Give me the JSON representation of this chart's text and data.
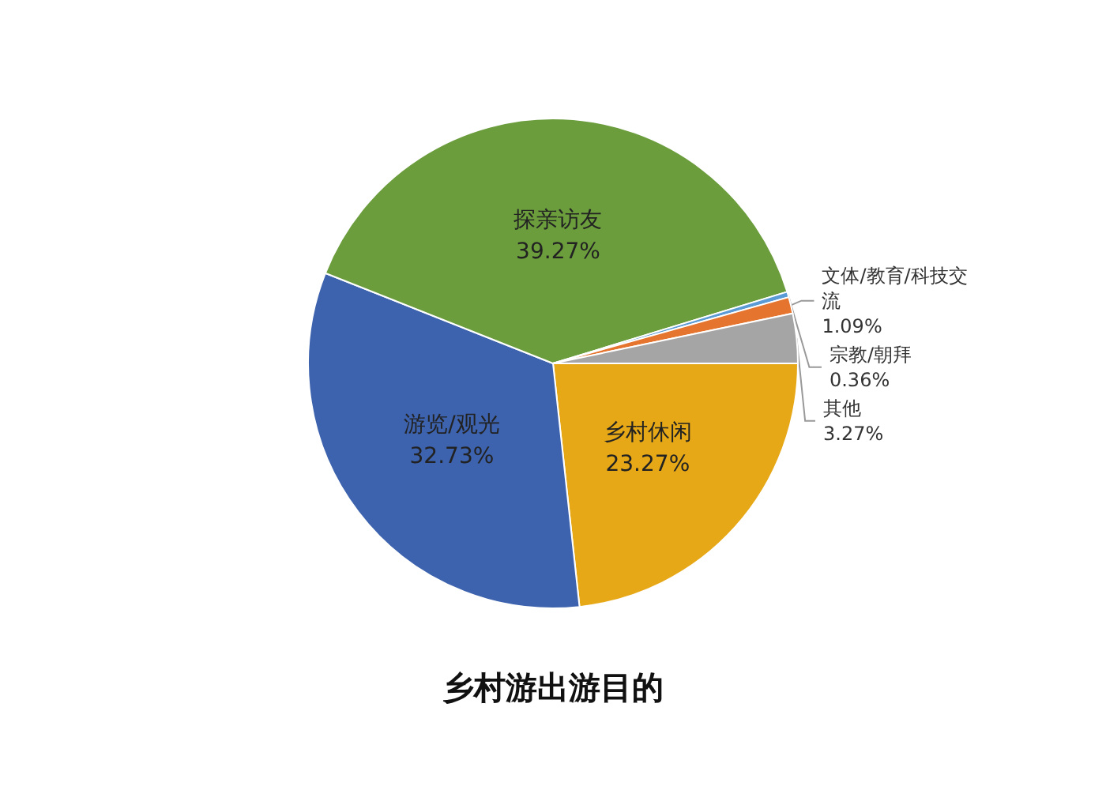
{
  "chart_data": {
    "type": "pie",
    "title": "乡村游出游目的",
    "categories": [
      "乡村休闲",
      "游览/观光",
      "探亲访友",
      "宗教/朝拜",
      "文体/教育/科技交流",
      "其他"
    ],
    "values": [
      23.27,
      32.73,
      39.27,
      0.36,
      1.09,
      3.27
    ],
    "value_labels": [
      "23.27%",
      "32.73%",
      "39.27%",
      "0.36%",
      "1.09%",
      "3.27%"
    ],
    "colors": [
      "#e6a817",
      "#3d63ae",
      "#6b9d3d",
      "#5b9bd5",
      "#e5752e",
      "#a5a5a5"
    ],
    "legend": false
  }
}
